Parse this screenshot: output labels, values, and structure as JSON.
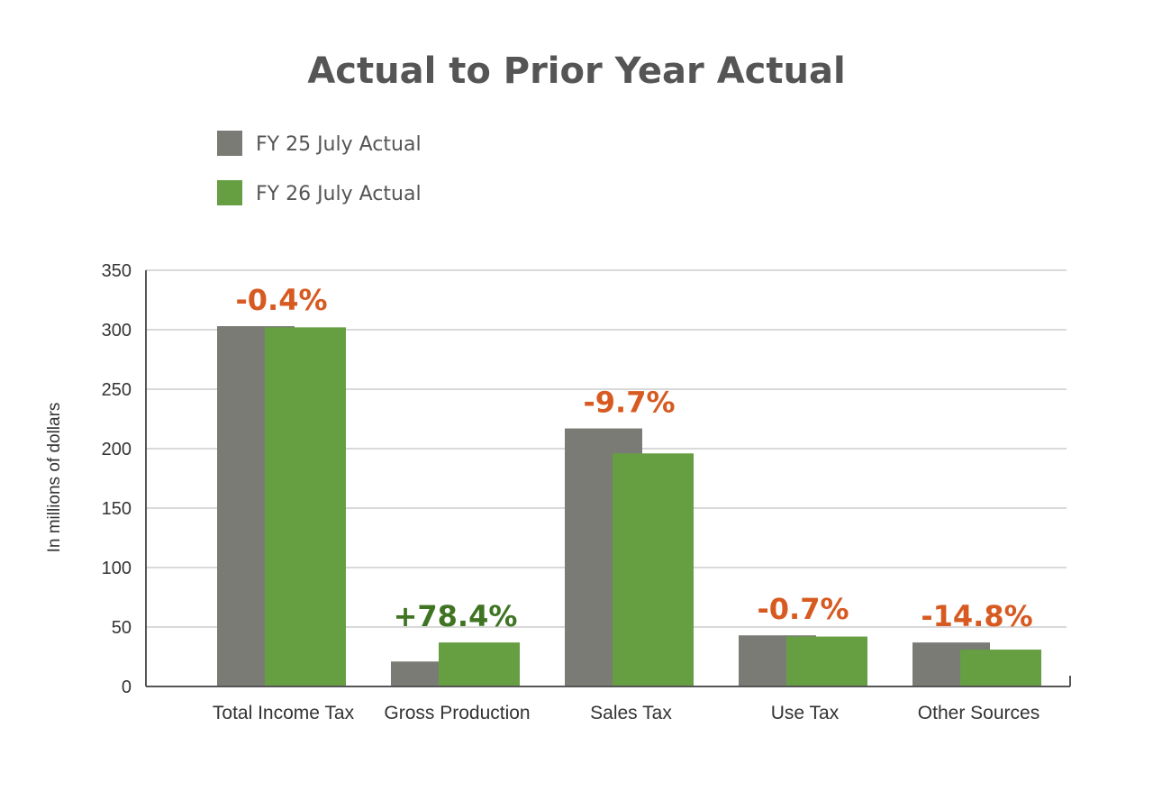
{
  "chart_data": {
    "type": "bar",
    "title": "Actual to Prior Year Actual",
    "ylabel": "In millions of dollars",
    "xlabel": "",
    "ylim": [
      0,
      350
    ],
    "yticks": [
      0,
      50,
      100,
      150,
      200,
      250,
      300,
      350
    ],
    "grid": true,
    "legend_placement": "top-left",
    "categories": [
      "Total Income Tax",
      "Gross Production",
      "Sales Tax",
      "Use Tax",
      "Other Sources"
    ],
    "series": [
      {
        "name": "FY 25 July Actual",
        "color": "#7b7b76",
        "values": [
          303,
          21,
          217,
          43,
          37
        ]
      },
      {
        "name": "FY 26 July Actual",
        "color": "#669e42",
        "values": [
          302,
          37,
          196,
          42,
          31
        ]
      }
    ],
    "annotations": [
      {
        "text": "-0.4%",
        "color": "#d75a21"
      },
      {
        "text": "+78.4%",
        "color": "#3f7423"
      },
      {
        "text": "-9.7%",
        "color": "#d75a21"
      },
      {
        "text": "-0.7%",
        "color": "#d75a21"
      },
      {
        "text": "-14.8%",
        "color": "#d75a21"
      }
    ]
  }
}
